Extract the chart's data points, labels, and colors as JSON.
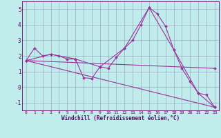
{
  "xlabel": "Windchill (Refroidissement éolien,°C)",
  "background_color": "#c0ecec",
  "line_color": "#993399",
  "grid_color": "#9999bb",
  "xlim": [
    -0.5,
    23.5
  ],
  "ylim": [
    -1.5,
    5.5
  ],
  "yticks": [
    -1,
    0,
    1,
    2,
    3,
    4,
    5
  ],
  "xticks": [
    0,
    1,
    2,
    3,
    4,
    5,
    6,
    7,
    8,
    9,
    10,
    11,
    12,
    13,
    14,
    15,
    16,
    17,
    18,
    19,
    20,
    21,
    22,
    23
  ],
  "lines": [
    {
      "x": [
        0,
        1,
        2,
        3,
        4,
        5,
        6,
        7,
        8,
        9,
        10,
        11,
        12,
        13,
        14,
        15,
        16,
        17,
        18,
        19,
        20,
        21,
        22,
        23
      ],
      "y": [
        1.7,
        2.5,
        2.0,
        2.1,
        2.0,
        1.8,
        1.8,
        0.6,
        0.55,
        1.3,
        1.2,
        1.9,
        2.5,
        3.0,
        4.0,
        5.1,
        4.7,
        3.9,
        2.4,
        1.2,
        0.35,
        -0.4,
        -0.5,
        -1.3
      ]
    },
    {
      "x": [
        0,
        3,
        6,
        9,
        12,
        15,
        18,
        21,
        23
      ],
      "y": [
        1.7,
        2.1,
        1.8,
        1.3,
        2.5,
        5.1,
        2.4,
        -0.4,
        -1.3
      ]
    },
    {
      "x": [
        0,
        23
      ],
      "y": [
        1.7,
        1.2
      ]
    },
    {
      "x": [
        0,
        23
      ],
      "y": [
        1.7,
        -1.3
      ]
    }
  ]
}
